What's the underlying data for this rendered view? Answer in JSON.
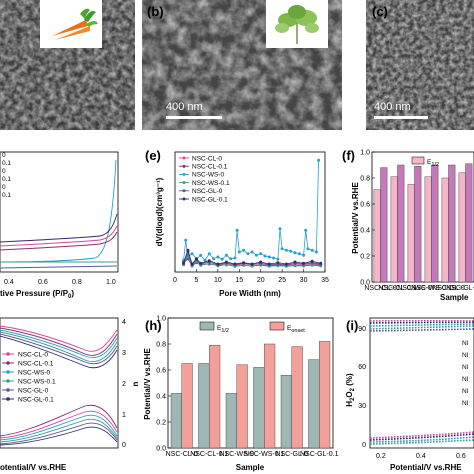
{
  "panel_labels": {
    "a": "",
    "b": "(b)",
    "c": "(c)",
    "d": "",
    "e": "(e)",
    "f": "(f)",
    "g": "",
    "h": "(h)",
    "i": "(i)"
  },
  "sem": {
    "scale_b": "400 nm",
    "scale_c": "400 nm"
  },
  "panel_d": {
    "xlabel_partial": "tive Pressure (P/P",
    "xlabel_sub": "0",
    "xticks": [
      "0.4",
      "0.6",
      "0.8",
      "1.0"
    ],
    "legend_fragments": [
      "0",
      "0.1",
      "0",
      "0.1",
      "0",
      "0.1"
    ]
  },
  "chart_data": [
    {
      "id": "e",
      "type": "line",
      "xlabel": "Pore Width (nm)",
      "ylabel": "dV(dlogd)(cm³g⁻¹)",
      "xlim": [
        0,
        35
      ],
      "xticks": [
        "0",
        "5",
        "10",
        "15",
        "20",
        "25",
        "30",
        "35"
      ],
      "legend": "top-left",
      "series": [
        {
          "name": "NSC-CL-0",
          "color": "#d9449a",
          "x": [
            2,
            3,
            4,
            5,
            6,
            8,
            10,
            12,
            14,
            16,
            18,
            20,
            22,
            24,
            26,
            28,
            30,
            32,
            34
          ],
          "y": [
            0.3,
            0.55,
            0.2,
            0.34,
            0.24,
            0.3,
            0.22,
            0.26,
            0.2,
            0.24,
            0.22,
            0.26,
            0.2,
            0.22,
            0.2,
            0.24,
            0.22,
            0.26,
            0.22
          ]
        },
        {
          "name": "NSC-CL-0.1",
          "color": "#8b2c6e",
          "x": [
            2,
            3,
            4,
            5,
            6,
            8,
            10,
            12,
            14,
            16,
            18,
            20,
            22,
            24,
            26,
            28,
            30,
            32,
            34
          ],
          "y": [
            0.26,
            0.4,
            0.18,
            0.28,
            0.22,
            0.24,
            0.2,
            0.22,
            0.18,
            0.2,
            0.18,
            0.22,
            0.18,
            0.2,
            0.18,
            0.2,
            0.19,
            0.22,
            0.2
          ]
        },
        {
          "name": "NSC-WS-0",
          "color": "#26a0d4",
          "x": [
            2,
            2.5,
            3,
            4,
            5,
            6,
            7,
            8,
            9,
            10,
            11,
            12,
            13,
            14,
            14.5,
            15,
            16,
            17,
            18,
            19,
            20,
            21,
            22,
            23,
            24,
            24.5,
            25,
            26,
            27,
            28,
            29,
            30,
            30.5,
            31,
            32,
            33,
            33.5
          ],
          "y": [
            0.35,
            0.95,
            0.45,
            0.55,
            0.4,
            0.5,
            0.35,
            0.55,
            0.4,
            0.45,
            0.38,
            0.5,
            0.4,
            0.42,
            1.25,
            0.6,
            0.65,
            0.55,
            0.6,
            0.5,
            0.55,
            0.48,
            0.45,
            0.42,
            0.38,
            1.3,
            0.7,
            0.65,
            0.62,
            0.58,
            0.55,
            0.5,
            1.25,
            0.7,
            0.65,
            0.6,
            3.35
          ]
        },
        {
          "name": "NSC-WS-0.1",
          "color": "#3c9f8a",
          "x": [
            2,
            3,
            4,
            5,
            6,
            8,
            10,
            12,
            14,
            16,
            18,
            20,
            22,
            24,
            26,
            28,
            30,
            32,
            34
          ],
          "y": [
            0.22,
            0.5,
            0.18,
            0.3,
            0.2,
            0.26,
            0.18,
            0.22,
            0.17,
            0.2,
            0.18,
            0.2,
            0.17,
            0.19,
            0.17,
            0.19,
            0.18,
            0.2,
            0.18
          ]
        },
        {
          "name": "NSC-GL-0",
          "color": "#5a5a9a",
          "x": [
            2,
            3,
            4,
            5,
            6,
            8,
            10,
            12,
            14,
            16,
            18,
            20,
            22,
            24,
            26,
            28,
            30,
            32,
            34
          ],
          "y": [
            0.24,
            0.6,
            0.22,
            0.36,
            0.24,
            0.3,
            0.22,
            0.28,
            0.22,
            0.26,
            0.22,
            0.26,
            0.22,
            0.24,
            0.22,
            0.26,
            0.24,
            0.28,
            0.24
          ]
        },
        {
          "name": "NSC-GL-0.1",
          "color": "#2e2a6e",
          "x": [
            2,
            3,
            4,
            5,
            6,
            8,
            10,
            12,
            14,
            16,
            18,
            20,
            22,
            24,
            26,
            28,
            30,
            32,
            34
          ],
          "y": [
            0.28,
            0.65,
            0.24,
            0.4,
            0.26,
            0.34,
            0.24,
            0.3,
            0.24,
            0.28,
            0.24,
            0.3,
            0.24,
            0.28,
            0.24,
            0.3,
            0.26,
            0.32,
            0.26
          ]
        }
      ],
      "ylim": [
        0,
        3.6
      ]
    },
    {
      "id": "f",
      "type": "bar",
      "ylabel": "Potential/V vs.RHE",
      "xlabel": "Sample",
      "xlabel_partial": "Sample",
      "categories": [
        "NSC-CL-0",
        "NSC-CL-0.1",
        "NSC-WS-0",
        "NSC-WS-0.1",
        "NSC-GL-0",
        "NSC-GL-0.1"
      ],
      "series": [
        {
          "name": "E1/2",
          "legend_main": "E",
          "legend_sub": "1/2",
          "color": "#f4b6c8",
          "values": [
            0.71,
            0.81,
            0.75,
            0.81,
            0.8,
            0.84
          ]
        },
        {
          "name": "",
          "color": "#c47ab8",
          "values": [
            0.88,
            0.9,
            0.89,
            0.9,
            0.9,
            0.91
          ]
        }
      ],
      "ylim": [
        0.0,
        1.0
      ],
      "yticks": [
        "0.0",
        "0.2",
        "0.4",
        "0.6",
        "0.8",
        "1.0"
      ],
      "legend": "top-center"
    },
    {
      "id": "h",
      "type": "bar",
      "ylabel": "Potential/V vs.RHE",
      "xlabel": "Sample",
      "categories": [
        "NSC-CL-0",
        "NSC-CL-0.1",
        "NSC-WS-0",
        "NSC-WS-0.1",
        "NSC-GL-0",
        "NSC-GL-0.1"
      ],
      "series": [
        {
          "name": "E1/2",
          "legend_main": "E",
          "legend_sub": "1/2",
          "color": "#9fb7b4",
          "values": [
            0.42,
            0.65,
            0.42,
            0.62,
            0.56,
            0.68
          ]
        },
        {
          "name": "Eonset",
          "legend_main": "E",
          "legend_sub": "onset",
          "color": "#f4a09a",
          "values": [
            0.65,
            0.79,
            0.64,
            0.8,
            0.78,
            0.82
          ]
        }
      ],
      "ylim": [
        0.0,
        1.0
      ],
      "yticks": [
        "0.0",
        "0.2",
        "0.4",
        "0.6",
        "0.8",
        "1.0"
      ],
      "legend": "top-center"
    },
    {
      "id": "g",
      "type": "line",
      "xlabel_partial": "otential/V vs.RHE",
      "ylabel_right": "n",
      "ylim_right": [
        0,
        4
      ],
      "yticks_right": [
        "0",
        "1",
        "2",
        "3",
        "4"
      ],
      "legend": "center-left",
      "series": [
        {
          "name": "NSC-CL-0",
          "color": "#d9449a"
        },
        {
          "name": "NSC-CL-0.1",
          "color": "#8b2c6e"
        },
        {
          "name": "NSC-WS-0",
          "color": "#26a0d4"
        },
        {
          "name": "NSC-WS-0.1",
          "color": "#3c9f8a"
        },
        {
          "name": "NSC-GL-0",
          "color": "#5a5a9a"
        },
        {
          "name": "NSC-GL-0.1",
          "color": "#2e2a6e"
        }
      ]
    },
    {
      "id": "i",
      "type": "line",
      "ylabel": "H2O2 (%)",
      "ylabel_main": "H",
      "ylabel_sub1": "2",
      "ylabel_mid": "O",
      "ylabel_sub2": "2",
      "ylabel_end": " (%)",
      "xlabel_partial": "Potential/V vs.RHE",
      "ylim": [
        0,
        100
      ],
      "yticks": [
        "0",
        "30",
        "60",
        "90"
      ],
      "xticks": [
        "0.2",
        "0.4",
        "0.6"
      ],
      "legend_fragments": [
        "NI",
        "NI",
        "NI",
        "NI",
        "NI",
        "NI"
      ]
    }
  ],
  "colors": {
    "cl0": "#d9449a",
    "cl01": "#8b2c6e",
    "ws0": "#26a0d4",
    "ws01": "#3c9f8a",
    "gl0": "#5a5a9a",
    "gl01": "#2e2a6e"
  }
}
